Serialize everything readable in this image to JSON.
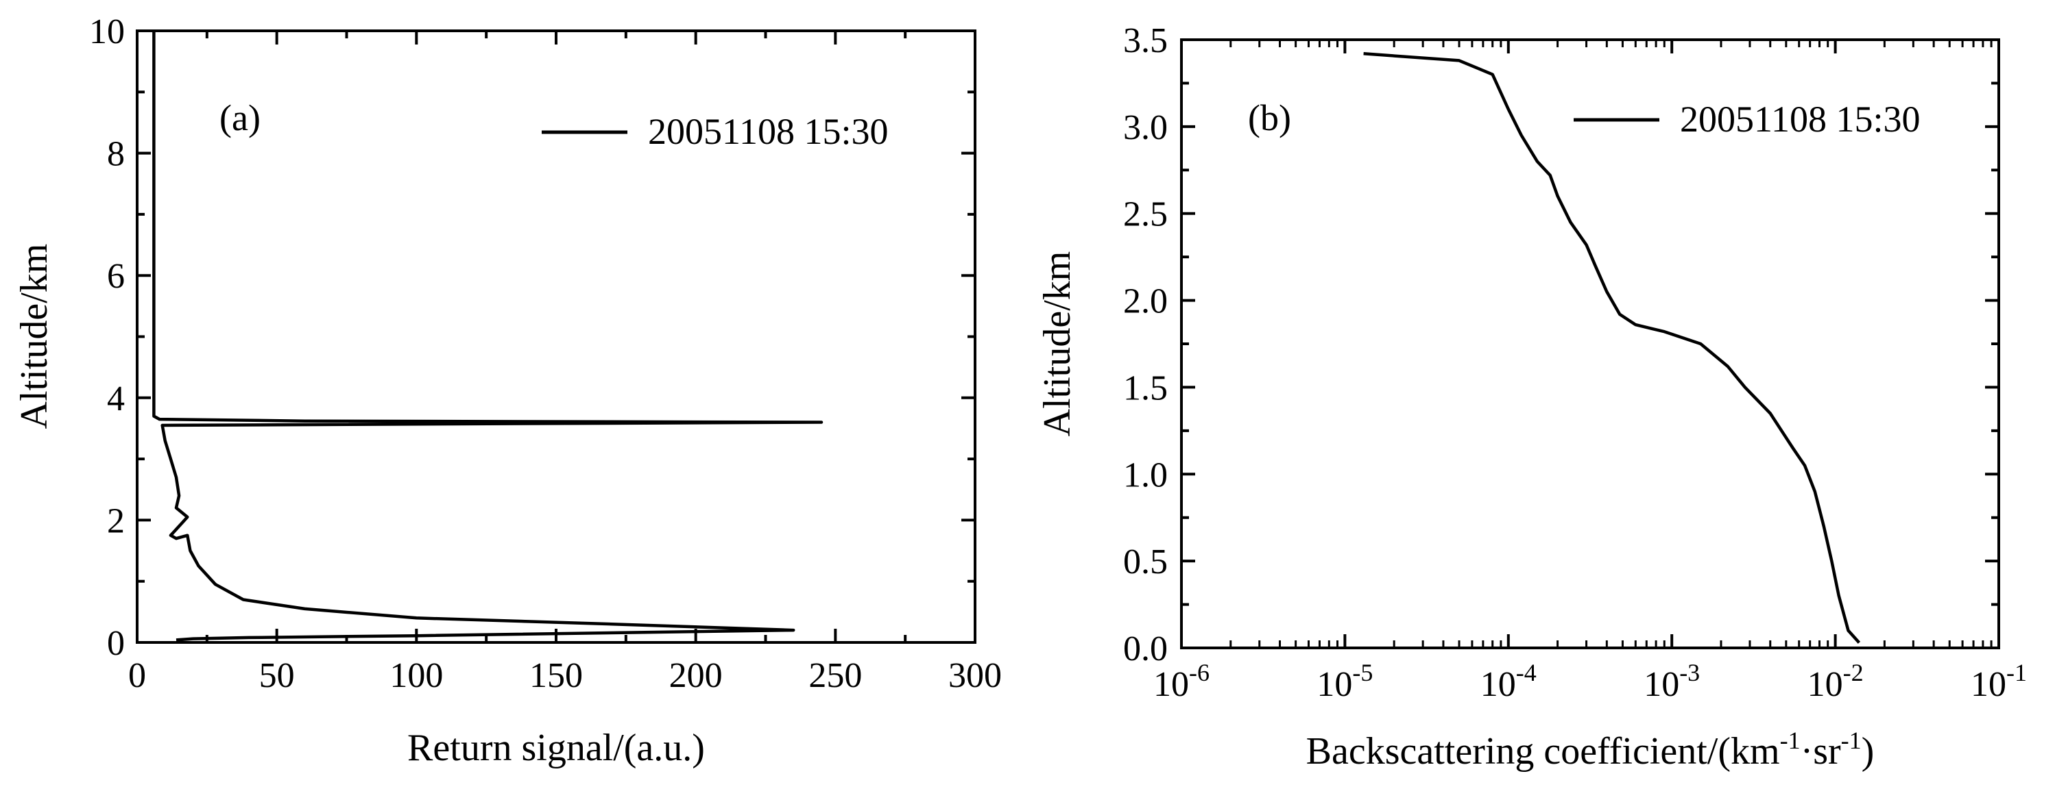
{
  "chart_data": [
    {
      "type": "line",
      "panel_label": "(a)",
      "xlabel": "Return signal/(a.u.)",
      "ylabel": "Altitude/km",
      "xlim": [
        0,
        300
      ],
      "ylim": [
        0,
        10
      ],
      "xticks": [
        0,
        50,
        100,
        150,
        200,
        250,
        300
      ],
      "yticks": [
        0,
        2,
        4,
        6,
        8,
        10
      ],
      "xtick_labels": [
        "0",
        "50",
        "100",
        "150",
        "200",
        "250",
        "300"
      ],
      "ytick_labels": [
        "0",
        "2",
        "4",
        "6",
        "8",
        "10"
      ],
      "legend_position": "top-right",
      "series": [
        {
          "name": "20051108 15:30",
          "color": "#000000",
          "x": [
            14,
            20,
            40,
            100,
            235,
            170,
            100,
            60,
            38,
            28,
            22,
            19,
            18,
            14,
            12,
            16,
            18,
            14,
            15,
            14,
            12,
            10,
            9,
            245,
            60,
            8,
            6,
            6
          ],
          "y": [
            0.04,
            0.06,
            0.08,
            0.11,
            0.2,
            0.3,
            0.4,
            0.55,
            0.7,
            0.95,
            1.25,
            1.5,
            1.75,
            1.7,
            1.75,
            1.95,
            2.05,
            2.2,
            2.4,
            2.7,
            3.0,
            3.3,
            3.55,
            3.6,
            3.62,
            3.65,
            3.7,
            10.0
          ]
        }
      ]
    },
    {
      "type": "line",
      "panel_label": "(b)",
      "xlabel_main": "Backscattering coefficient/(km",
      "xlabel_sup1": "-1",
      "xlabel_mid": "·sr",
      "xlabel_sup2": "-1",
      "xlabel_end": ")",
      "ylabel": "Altitude/km",
      "xscale": "log",
      "xlim": [
        1e-06,
        0.1
      ],
      "ylim": [
        0,
        3.5
      ],
      "xticks": [
        1e-06,
        1e-05,
        0.0001,
        0.001,
        0.01,
        0.1
      ],
      "xtick_base": "10",
      "xtick_exponents": [
        "-6",
        "-5",
        "-4",
        "-3",
        "-2",
        "-1"
      ],
      "yticks": [
        0.0,
        0.5,
        1.0,
        1.5,
        2.0,
        2.5,
        3.0,
        3.5
      ],
      "ytick_labels": [
        "0.0",
        "0.5",
        "1.0",
        "1.5",
        "2.0",
        "2.5",
        "3.0",
        "3.5"
      ],
      "legend_position": "top-right",
      "series": [
        {
          "name": "20051108 15:30",
          "color": "#000000",
          "x": [
            0.014,
            0.012,
            0.0105,
            0.0095,
            0.0085,
            0.0075,
            0.0065,
            0.0055,
            0.004,
            0.0028,
            0.0022,
            0.0015,
            0.0009,
            0.0006,
            0.00048,
            0.0004,
            0.00034,
            0.0003,
            0.00024,
            0.0002,
            0.00018,
            0.00015,
            0.00012,
            0.0001,
            8e-05,
            5e-05,
            1.3e-05
          ],
          "y": [
            0.03,
            0.1,
            0.3,
            0.5,
            0.7,
            0.9,
            1.05,
            1.15,
            1.35,
            1.5,
            1.62,
            1.75,
            1.82,
            1.86,
            1.92,
            2.05,
            2.2,
            2.32,
            2.45,
            2.6,
            2.72,
            2.8,
            2.95,
            3.1,
            3.3,
            3.38,
            3.42
          ]
        }
      ]
    }
  ]
}
